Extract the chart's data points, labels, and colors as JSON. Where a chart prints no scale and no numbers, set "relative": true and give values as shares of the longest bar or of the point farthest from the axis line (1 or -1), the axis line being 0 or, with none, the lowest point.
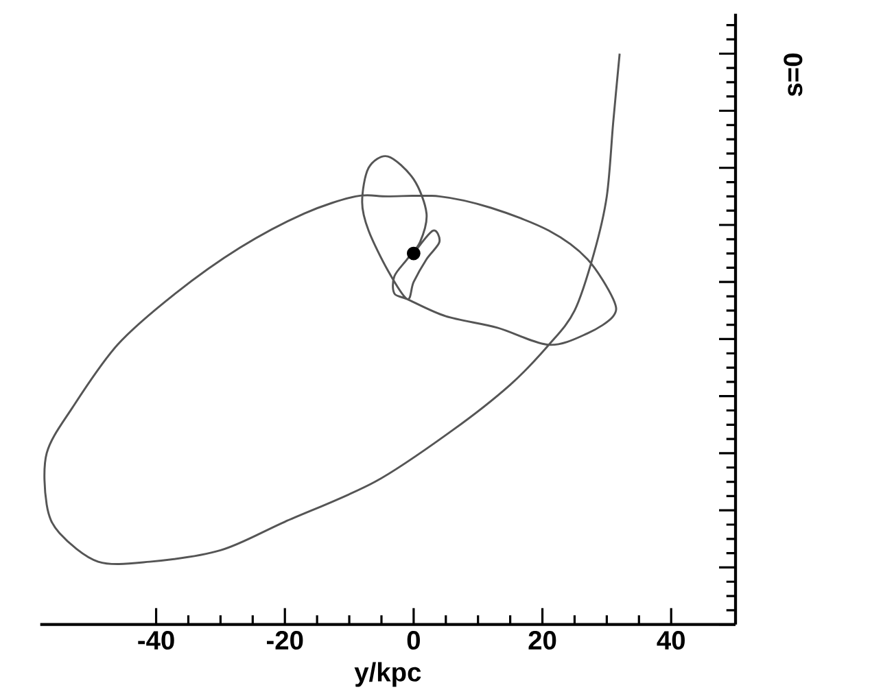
{
  "chart_data": {
    "type": "line",
    "xlabel": "y/kpc",
    "annotations": [
      "s=0"
    ],
    "xlim": [
      -58,
      50
    ],
    "xticks": [
      -40,
      -20,
      0,
      20,
      40
    ],
    "relative": true,
    "line_style": "solid",
    "series": [
      {
        "color": "#555555",
        "x": [
          32,
          31,
          30,
          28,
          25,
          21,
          15,
          6,
          -6,
          -20,
          -30,
          -41,
          -49,
          -55,
          -57,
          -57,
          -53,
          -46,
          -37,
          -27,
          -17,
          -9,
          -4,
          4,
          12,
          21,
          27,
          31,
          31,
          27,
          21,
          13,
          5,
          -1,
          -3,
          -3,
          -1,
          1,
          2,
          0,
          -4,
          -7,
          -8,
          -7,
          -4,
          -1,
          0,
          2,
          4,
          3,
          0
        ],
        "values": [
          1.0,
          0.88,
          0.75,
          0.65,
          0.55,
          0.49,
          0.42,
          0.34,
          0.25,
          0.18,
          0.13,
          0.11,
          0.11,
          0.16,
          0.21,
          0.3,
          0.38,
          0.49,
          0.58,
          0.66,
          0.72,
          0.75,
          0.75,
          0.75,
          0.73,
          0.69,
          0.64,
          0.57,
          0.54,
          0.51,
          0.49,
          0.52,
          0.54,
          0.57,
          0.58,
          0.61,
          0.64,
          0.67,
          0.72,
          0.78,
          0.82,
          0.8,
          0.74,
          0.69,
          0.62,
          0.57,
          0.6,
          0.64,
          0.67,
          0.69,
          0.65
        ]
      },
      {
        "type": "scatter",
        "color": "#000000",
        "x": [
          0
        ],
        "values": [
          0.65
        ]
      }
    ]
  }
}
